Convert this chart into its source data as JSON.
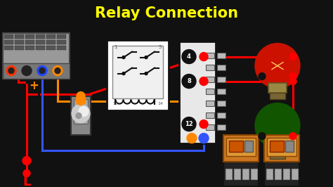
{
  "title": "Relay Connection",
  "title_color": "#FFFF00",
  "title_fontsize": 15,
  "bg_header_color": "#111111",
  "bg_main_color": "#FFFFFF",
  "wire_red": "#FF0000",
  "wire_black": "#111111",
  "wire_blue": "#3355FF",
  "wire_orange": "#FF8800",
  "label_L_color": "#FF0000",
  "label_N_color": "#111111",
  "fig_width": 4.74,
  "fig_height": 2.66,
  "dpi": 100
}
